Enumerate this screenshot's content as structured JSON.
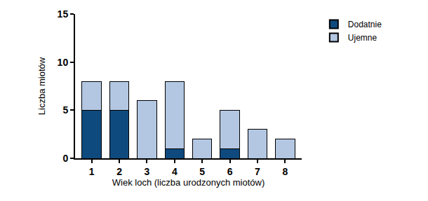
{
  "chart_data": {
    "type": "bar",
    "stacked": true,
    "x_label": "Wiek loch (liczba urodzonych miotów)",
    "y_label": "Liczba miotów",
    "categories": [
      "1",
      "2",
      "3",
      "4",
      "5",
      "6",
      "7",
      "8"
    ],
    "series": [
      {
        "name": "Dodatnie",
        "color": "#0f4a7e",
        "values": [
          5,
          5,
          0,
          1,
          0,
          1,
          0,
          0
        ]
      },
      {
        "name": "Ujemne",
        "color": "#b3c7e2",
        "values": [
          3,
          3,
          6,
          7,
          2,
          4,
          3,
          2
        ]
      }
    ],
    "ylim": [
      0,
      15
    ],
    "yticks": [
      0,
      5,
      10,
      15
    ],
    "grid": false,
    "legend": "top right"
  }
}
